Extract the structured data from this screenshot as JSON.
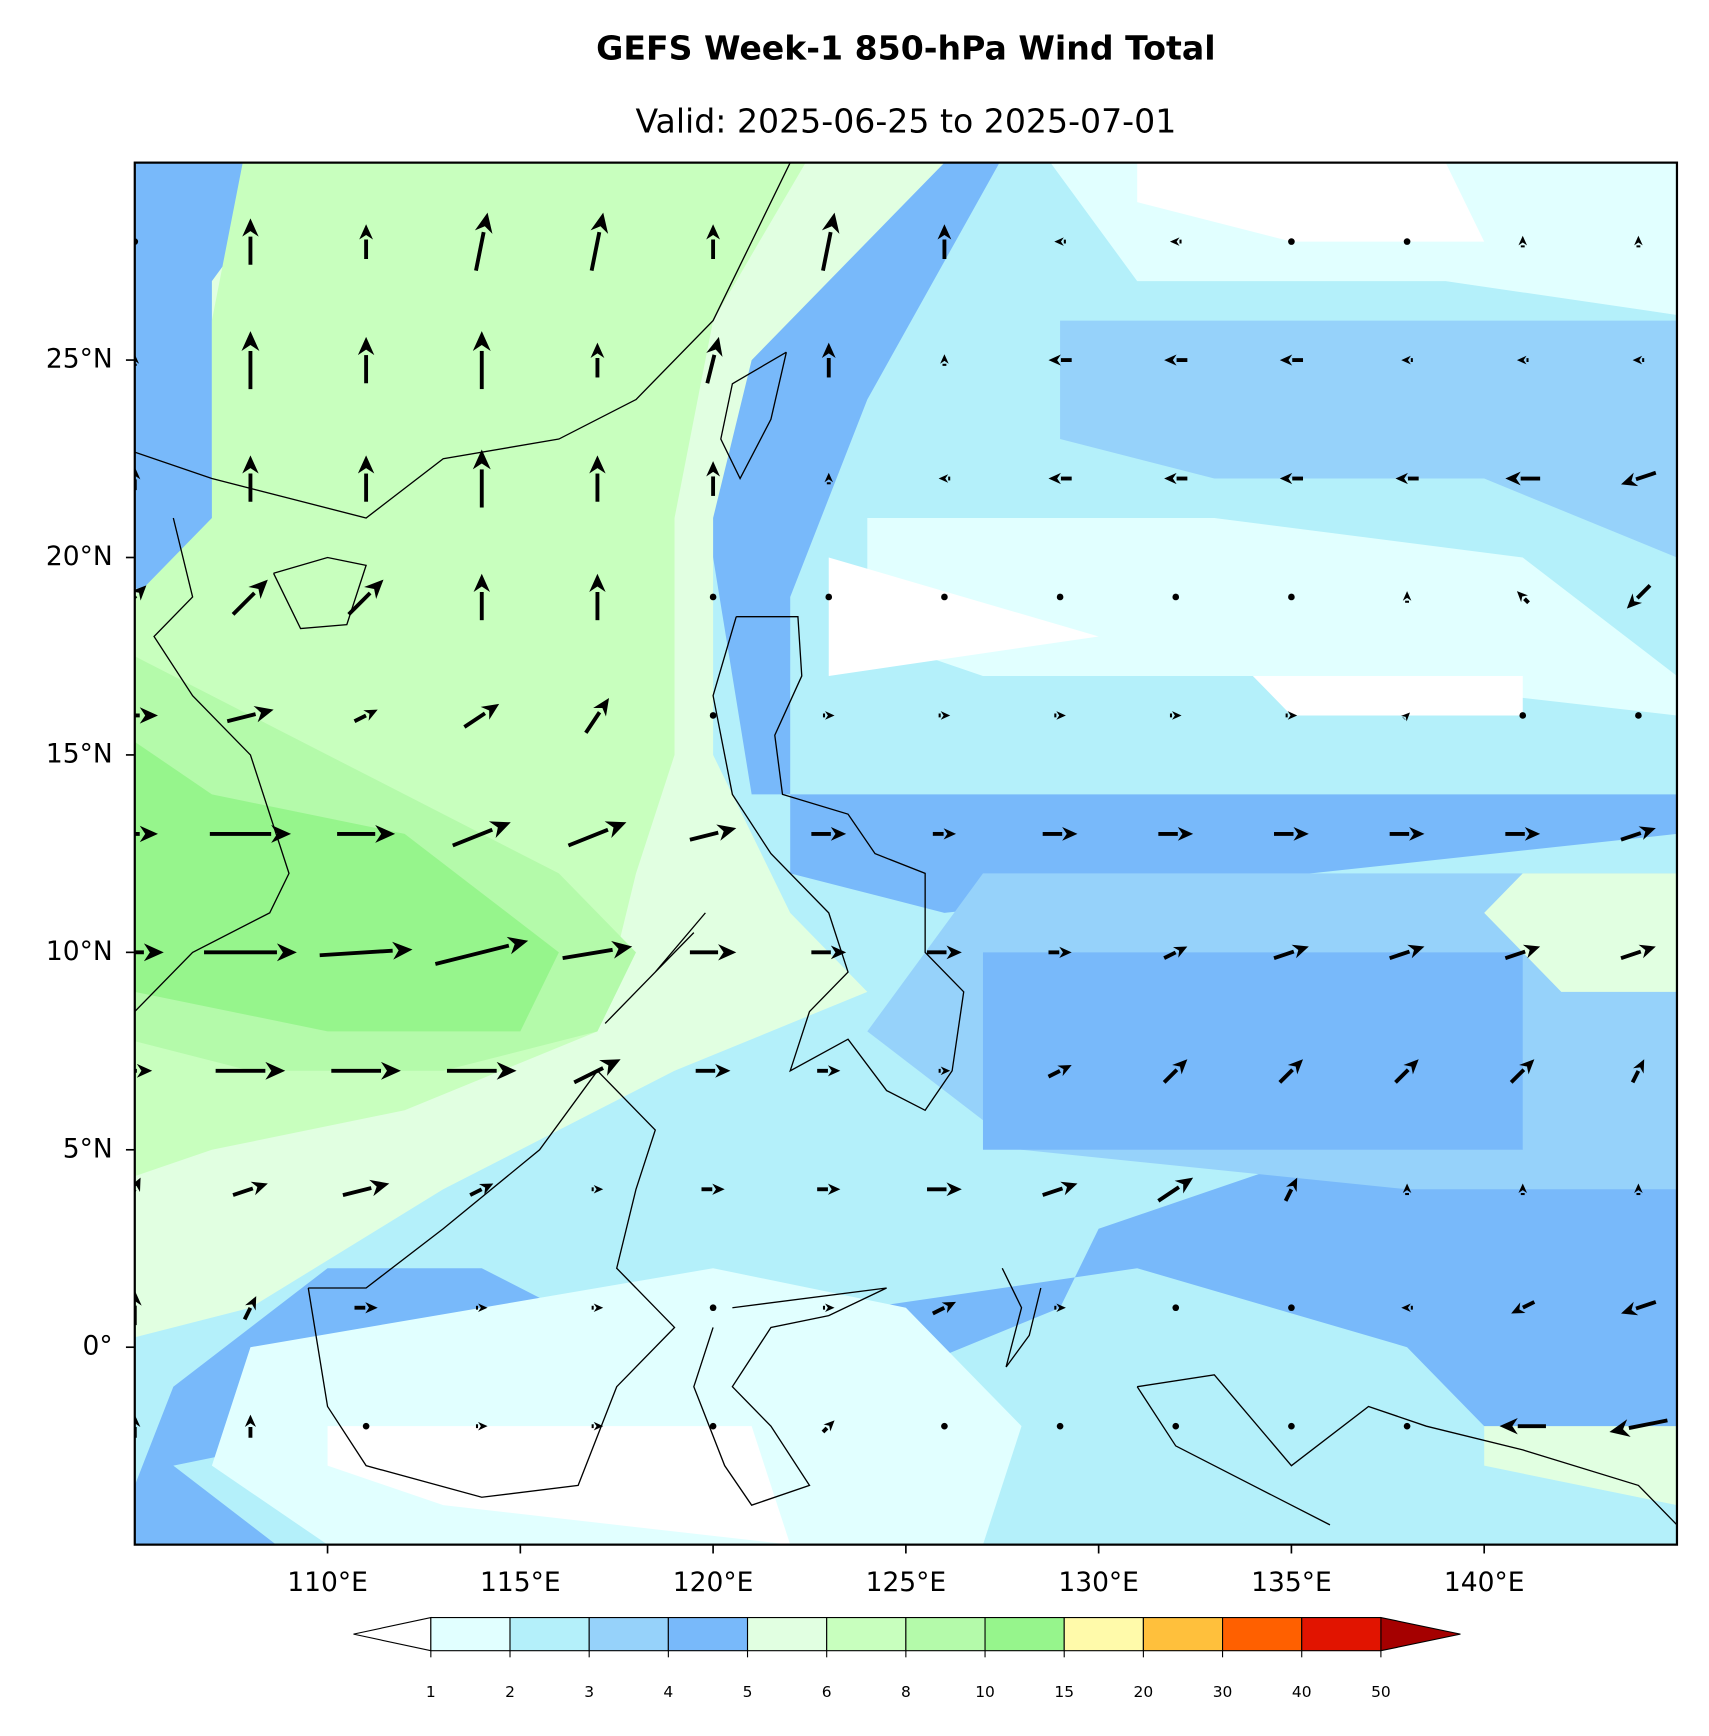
{
  "title": "GEFS Week-1 850-hPa Wind Total",
  "subtitle": "Valid: 2025-06-25 to 2025-07-01",
  "map": {
    "lonlim": [
      105,
      145
    ],
    "latlim": [
      -5,
      30
    ],
    "lon_ticks": [
      {
        "value": 110,
        "label": "110°E"
      },
      {
        "value": 115,
        "label": "115°E"
      },
      {
        "value": 120,
        "label": "120°E"
      },
      {
        "value": 125,
        "label": "125°E"
      },
      {
        "value": 130,
        "label": "130°E"
      },
      {
        "value": 135,
        "label": "135°E"
      },
      {
        "value": 140,
        "label": "140°E"
      }
    ],
    "lat_ticks": [
      {
        "value": 0,
        "label": "0°"
      },
      {
        "value": 5,
        "label": "5°N"
      },
      {
        "value": 10,
        "label": "10°N"
      },
      {
        "value": 15,
        "label": "15°N"
      },
      {
        "value": 20,
        "label": "20°N"
      },
      {
        "value": 25,
        "label": "25°N"
      }
    ]
  },
  "colorbar": {
    "levels": [
      1,
      2,
      3,
      4,
      5,
      6,
      8,
      10,
      15,
      20,
      30,
      40,
      50
    ],
    "colors": [
      "#e1ffff",
      "#b4f0fa",
      "#96d2fa",
      "#78b9fa",
      "#e1ffe1",
      "#c8ffbe",
      "#b4faaa",
      "#96f58c",
      "#fffaaa",
      "#ffc03c",
      "#ff6000",
      "#e11400"
    ],
    "under_color": "#ffffff",
    "over_color": "#a50000"
  },
  "wind": {
    "lons": [
      105,
      108,
      111,
      114,
      117,
      120,
      123,
      126,
      129,
      132,
      135,
      138,
      141,
      144
    ],
    "lats": [
      28,
      25,
      22,
      19,
      16,
      13,
      10,
      7,
      4,
      1,
      -2
    ],
    "u": [
      [
        0,
        0,
        0,
        1,
        1,
        0,
        1,
        0,
        -1,
        -1,
        0,
        0,
        0,
        0
      ],
      [
        0,
        0,
        0,
        0,
        0,
        1,
        0,
        0,
        -2,
        -2,
        -2,
        -1,
        -1,
        -1
      ],
      [
        0,
        0,
        0,
        0,
        0,
        0,
        0,
        -1,
        -2,
        -2,
        -2,
        -2,
        -3,
        -3
      ],
      [
        2,
        3,
        3,
        0,
        0,
        0,
        0,
        0,
        0,
        0,
        0,
        0,
        -1,
        -2
      ],
      [
        4,
        4,
        2,
        3,
        2,
        0,
        1,
        1,
        1,
        1,
        1,
        0.5,
        0,
        0
      ],
      [
        4,
        7,
        5,
        5,
        5,
        4,
        3,
        2,
        3,
        3,
        3,
        3,
        3,
        3
      ],
      [
        5,
        8,
        8,
        8,
        6,
        4,
        3,
        3,
        2,
        2,
        3,
        3,
        3,
        3
      ],
      [
        3,
        6,
        6,
        6,
        4,
        3,
        2,
        1,
        2,
        2,
        2,
        2,
        2,
        1
      ],
      [
        1,
        3,
        4,
        2,
        1,
        2,
        2,
        3,
        3,
        3,
        1,
        0,
        0,
        0
      ],
      [
        0,
        1,
        2,
        1,
        1,
        0,
        1,
        2,
        1,
        0,
        0,
        -1,
        -2,
        -3
      ],
      [
        0,
        0,
        0,
        1,
        1,
        0,
        1,
        0,
        0,
        0,
        0,
        0,
        -4,
        -5
      ]
    ],
    "v": [
      [
        0,
        4,
        3,
        5,
        5,
        3,
        5,
        3,
        0,
        0,
        0,
        0,
        1,
        1
      ],
      [
        1,
        5,
        4,
        5,
        3,
        4,
        3,
        1,
        0,
        0,
        0,
        0,
        0,
        0
      ],
      [
        2,
        4,
        4,
        5,
        4,
        3,
        1,
        0,
        0,
        0,
        0,
        0,
        0,
        -1
      ],
      [
        2,
        3,
        3,
        4,
        4,
        0,
        0,
        0,
        0,
        0,
        0,
        1,
        1,
        -2
      ],
      [
        0,
        1,
        1,
        2,
        3,
        0,
        0,
        0,
        0,
        0,
        0,
        0.5,
        0,
        0
      ],
      [
        0,
        0,
        0,
        2,
        2,
        1,
        0,
        0,
        0,
        0,
        0,
        0,
        0,
        1
      ],
      [
        0,
        0,
        0.5,
        2,
        1,
        0,
        0,
        0,
        0,
        1,
        1,
        1,
        1,
        1
      ],
      [
        0,
        0,
        0,
        0,
        2,
        0,
        0,
        0,
        1,
        2,
        2,
        2,
        2,
        2
      ],
      [
        2,
        1,
        1,
        1,
        0,
        0,
        0,
        0,
        1,
        2,
        2,
        1,
        1,
        1
      ],
      [
        3,
        2,
        0,
        0,
        0,
        0,
        0,
        1,
        0,
        0,
        0,
        0,
        -1,
        -1
      ],
      [
        2,
        2,
        0,
        0,
        0,
        0,
        1,
        0,
        0,
        0,
        0,
        0,
        0,
        -1
      ]
    ]
  }
}
